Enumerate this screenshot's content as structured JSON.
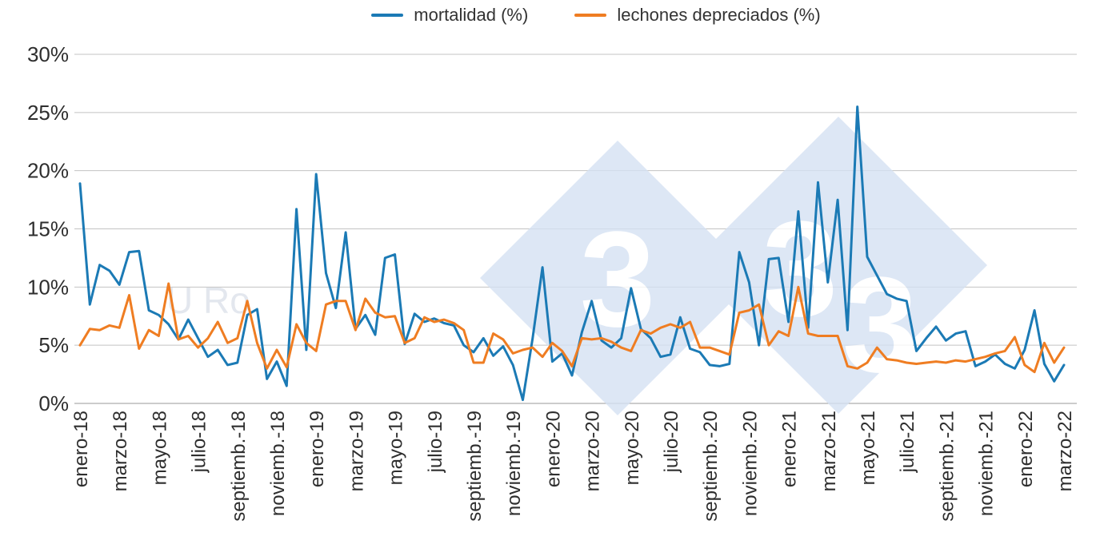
{
  "page": {
    "background": "#ffffff"
  },
  "legend": {
    "items": [
      {
        "label": "mortalidad (%)",
        "color": "#1b7ab5"
      },
      {
        "label": "lechones depreciados (%)",
        "color": "#ef7d22"
      }
    ]
  },
  "watermark": {
    "digits": [
      "3",
      "3",
      "3"
    ],
    "text_fragment": "U Ro",
    "diamond_color": "#d5e2f3",
    "digit_color": "#ffffff",
    "text_color": "#dde2ea"
  },
  "chart_data": {
    "type": "line",
    "title": "",
    "xlabel": "",
    "ylabel": "",
    "ylim": [
      0,
      30
    ],
    "grid": true,
    "legend_position": "top-center",
    "y_tick_values": [
      0,
      5,
      10,
      15,
      20,
      25,
      30
    ],
    "y_ticks": [
      "0%",
      "5%",
      "10%",
      "15%",
      "20%",
      "25%",
      "30%"
    ],
    "x_tick_labels": [
      "enero-18",
      "marzo-18",
      "mayo-18",
      "julio-18",
      "septiemb.-18",
      "noviemb.-18",
      "enero-19",
      "marzo-19",
      "mayo-19",
      "julio-19",
      "septiemb.-19",
      "noviemb.-19",
      "enero-20",
      "marzo-20",
      "mayo-20",
      "julio-20",
      "septiemb.-20",
      "noviemb.-20",
      "enero-21",
      "marzo-21",
      "mayo-21",
      "julio-21",
      "septiemb.-21",
      "noviemb.-21",
      "enero-22",
      "marzo-22"
    ],
    "x_tick_step_months": 2,
    "points_per_month": 2,
    "series": [
      {
        "name": "mortalidad (%)",
        "color": "#1b7ab5",
        "values": [
          18.9,
          8.5,
          11.9,
          11.4,
          10.2,
          13.0,
          13.1,
          8.0,
          7.6,
          6.8,
          5.5,
          7.2,
          5.6,
          4.0,
          4.6,
          3.3,
          3.5,
          7.6,
          8.1,
          2.1,
          3.6,
          1.5,
          16.7,
          4.6,
          19.7,
          11.2,
          8.2,
          14.7,
          6.4,
          7.6,
          5.9,
          12.5,
          12.8,
          5.1,
          7.7,
          7.0,
          7.3,
          6.9,
          6.7,
          5.0,
          4.4,
          5.6,
          4.1,
          4.9,
          3.3,
          0.3,
          5.6,
          11.7,
          3.6,
          4.3,
          2.4,
          6.1,
          8.8,
          5.4,
          4.8,
          5.6,
          9.9,
          6.4,
          5.6,
          4.0,
          4.2,
          7.4,
          4.7,
          4.4,
          3.3,
          3.2,
          3.4,
          13.0,
          10.4,
          5.0,
          12.4,
          12.5,
          7.0,
          16.5,
          6.5,
          19.0,
          10.4,
          17.5,
          6.3,
          25.5,
          12.6,
          11.0,
          9.4,
          9.0,
          8.8,
          4.5,
          5.6,
          6.6,
          5.4,
          6.0,
          6.2,
          3.2,
          3.6,
          4.2,
          3.4,
          3.0,
          4.6,
          8.0,
          3.4,
          1.9,
          3.3
        ]
      },
      {
        "name": "lechones depreciados (%)",
        "color": "#ef7d22",
        "values": [
          5.0,
          6.4,
          6.3,
          6.7,
          6.5,
          9.3,
          4.7,
          6.3,
          5.8,
          10.3,
          5.5,
          5.8,
          4.8,
          5.6,
          7.0,
          5.2,
          5.6,
          8.8,
          5.2,
          3.0,
          4.6,
          3.1,
          6.8,
          5.2,
          4.5,
          8.5,
          8.8,
          8.8,
          6.3,
          9.0,
          7.8,
          7.4,
          7.5,
          5.2,
          5.6,
          7.4,
          7.0,
          7.2,
          6.9,
          6.3,
          3.5,
          3.5,
          6.0,
          5.5,
          4.3,
          4.6,
          4.8,
          4.0,
          5.2,
          4.5,
          3.2,
          5.6,
          5.5,
          5.6,
          5.3,
          4.8,
          4.5,
          6.3,
          6.0,
          6.5,
          6.8,
          6.5,
          7.0,
          4.8,
          4.8,
          4.5,
          4.2,
          7.8,
          8.0,
          8.5,
          5.0,
          6.2,
          5.8,
          10.0,
          6.0,
          5.8,
          5.8,
          5.8,
          3.2,
          3.0,
          3.5,
          4.8,
          3.8,
          3.7,
          3.5,
          3.4,
          3.5,
          3.6,
          3.5,
          3.7,
          3.6,
          3.8,
          4.0,
          4.3,
          4.5,
          5.7,
          3.3,
          2.7,
          5.2,
          3.5,
          4.8
        ]
      }
    ]
  }
}
